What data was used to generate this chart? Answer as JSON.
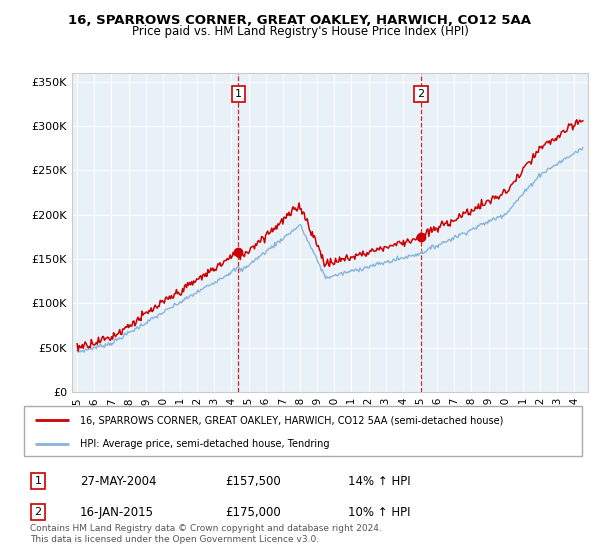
{
  "title": "16, SPARROWS CORNER, GREAT OAKLEY, HARWICH, CO12 5AA",
  "subtitle": "Price paid vs. HM Land Registry's House Price Index (HPI)",
  "legend_line1": "16, SPARROWS CORNER, GREAT OAKLEY, HARWICH, CO12 5AA (semi-detached house)",
  "legend_line2": "HPI: Average price, semi-detached house, Tendring",
  "annotation1_label": "1",
  "annotation1_date": "27-MAY-2004",
  "annotation1_price": "£157,500",
  "annotation1_hpi": "14% ↑ HPI",
  "annotation2_label": "2",
  "annotation2_date": "16-JAN-2015",
  "annotation2_price": "£175,000",
  "annotation2_hpi": "10% ↑ HPI",
  "footer": "Contains HM Land Registry data © Crown copyright and database right 2024.\nThis data is licensed under the Open Government Licence v3.0.",
  "ylim": [
    0,
    360000
  ],
  "yticks": [
    0,
    50000,
    100000,
    150000,
    200000,
    250000,
    300000,
    350000
  ],
  "ytick_labels": [
    "£0",
    "£50K",
    "£100K",
    "£150K",
    "£200K",
    "£250K",
    "£300K",
    "£350K"
  ],
  "xlim_left": 1994.7,
  "xlim_right": 2024.8,
  "sale1_x": 2004.41,
  "sale1_y": 157500,
  "sale2_x": 2015.04,
  "sale2_y": 175000,
  "red_color": "#cc0000",
  "blue_color": "#89b4d9",
  "plot_bg": "#e8f0f8",
  "grid_color": "#ffffff",
  "number_box_color": "#cc0000"
}
